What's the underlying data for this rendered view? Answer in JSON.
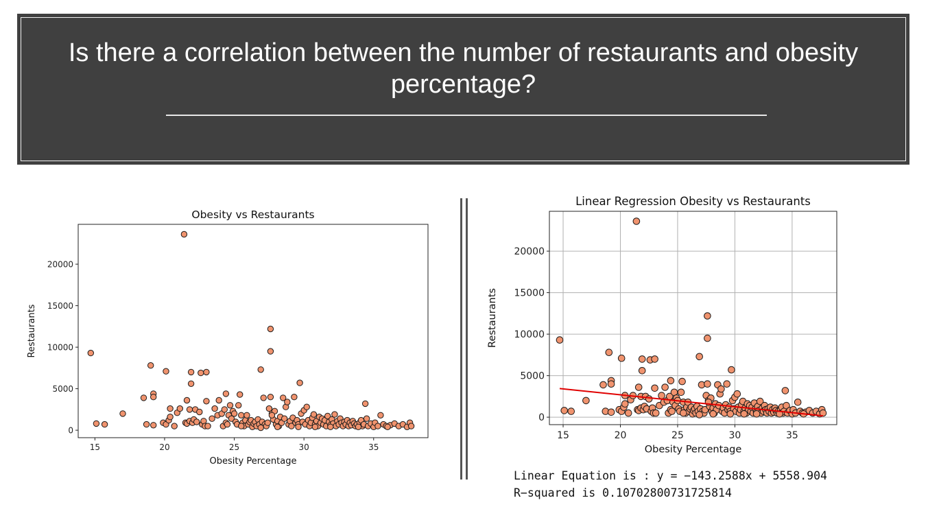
{
  "banner": {
    "title": "Is there a correlation between the number of restaurants and obesity percentage?"
  },
  "regression": {
    "equation": "Linear Equation is : y = −143.2588x + 5558.904",
    "r_squared": "R−squared is 0.10702800731725814",
    "slope": -143.2588,
    "intercept": 5558.904,
    "line_color": "#e00000"
  },
  "colors": {
    "marker_fill": "#f0936e",
    "marker_edge": "#1a1a1a"
  },
  "chart_data": [
    {
      "type": "scatter",
      "title": "Obesity vs Restaurants",
      "xlabel": "Obesity Percentage",
      "ylabel": "Restaurants",
      "xlim": [
        13.8,
        38.9
      ],
      "ylim": [
        -900,
        24800
      ],
      "xticks": [
        15,
        20,
        25,
        30,
        35
      ],
      "yticks": [
        0,
        5000,
        10000,
        15000,
        20000
      ],
      "grid": false
    },
    {
      "type": "scatter",
      "title": "Linear Regression Obesity vs Restaurants",
      "xlabel": "Obesity Percentage",
      "ylabel": "Restaurants",
      "xlim": [
        13.8,
        38.9
      ],
      "ylim": [
        -900,
        24800
      ],
      "xticks": [
        15,
        20,
        25,
        30,
        35
      ],
      "yticks": [
        0,
        5000,
        10000,
        15000,
        20000
      ],
      "grid": true,
      "regression_line": true
    }
  ],
  "points": [
    [
      14.7,
      9300
    ],
    [
      15.1,
      800
    ],
    [
      15.7,
      700
    ],
    [
      17.0,
      2000
    ],
    [
      18.5,
      3900
    ],
    [
      18.7,
      700
    ],
    [
      19.0,
      7800
    ],
    [
      19.2,
      4400
    ],
    [
      19.2,
      4000
    ],
    [
      19.2,
      600
    ],
    [
      19.9,
      900
    ],
    [
      20.1,
      7100
    ],
    [
      20.1,
      700
    ],
    [
      20.3,
      1200
    ],
    [
      20.4,
      1600
    ],
    [
      20.4,
      2600
    ],
    [
      20.7,
      500
    ],
    [
      20.9,
      2100
    ],
    [
      21.1,
      2600
    ],
    [
      21.4,
      23600
    ],
    [
      21.5,
      900
    ],
    [
      21.6,
      3600
    ],
    [
      21.6,
      800
    ],
    [
      21.8,
      1100
    ],
    [
      21.8,
      2500
    ],
    [
      21.9,
      7000
    ],
    [
      21.9,
      5600
    ],
    [
      22.0,
      900
    ],
    [
      22.1,
      1300
    ],
    [
      22.2,
      2500
    ],
    [
      22.3,
      1000
    ],
    [
      22.5,
      2200
    ],
    [
      22.6,
      6900
    ],
    [
      22.7,
      700
    ],
    [
      22.8,
      1100
    ],
    [
      22.9,
      500
    ],
    [
      23.0,
      7000
    ],
    [
      23.0,
      3500
    ],
    [
      23.1,
      500
    ],
    [
      23.4,
      1400
    ],
    [
      23.6,
      2600
    ],
    [
      23.8,
      1800
    ],
    [
      23.9,
      3600
    ],
    [
      24.1,
      2000
    ],
    [
      24.2,
      500
    ],
    [
      24.3,
      2500
    ],
    [
      24.4,
      4400
    ],
    [
      24.4,
      900
    ],
    [
      24.5,
      700
    ],
    [
      24.6,
      1800
    ],
    [
      24.7,
      3000
    ],
    [
      24.8,
      1400
    ],
    [
      24.9,
      2300
    ],
    [
      25.0,
      2000
    ],
    [
      25.1,
      1000
    ],
    [
      25.2,
      700
    ],
    [
      25.3,
      3000
    ],
    [
      25.4,
      4300
    ],
    [
      25.5,
      1800
    ],
    [
      25.6,
      900
    ],
    [
      25.7,
      500
    ],
    [
      25.8,
      1200
    ],
    [
      25.9,
      1800
    ],
    [
      26.0,
      700
    ],
    [
      26.1,
      1000
    ],
    [
      26.2,
      1200
    ],
    [
      26.3,
      400
    ],
    [
      26.4,
      800
    ],
    [
      26.5,
      1000
    ],
    [
      26.6,
      500
    ],
    [
      26.7,
      1300
    ],
    [
      26.8,
      700
    ],
    [
      26.9,
      7300
    ],
    [
      27.0,
      1000
    ],
    [
      27.1,
      3900
    ],
    [
      27.2,
      700
    ],
    [
      27.3,
      500
    ],
    [
      27.4,
      900
    ],
    [
      27.5,
      2600
    ],
    [
      27.6,
      4000
    ],
    [
      27.6,
      12200
    ],
    [
      27.6,
      9500
    ],
    [
      27.7,
      2000
    ],
    [
      27.8,
      1300
    ],
    [
      27.9,
      2300
    ],
    [
      28.0,
      700
    ],
    [
      28.1,
      1100
    ],
    [
      28.2,
      500
    ],
    [
      28.3,
      1600
    ],
    [
      28.4,
      900
    ],
    [
      28.5,
      3900
    ],
    [
      28.6,
      1400
    ],
    [
      28.7,
      2800
    ],
    [
      28.8,
      3400
    ],
    [
      28.9,
      700
    ],
    [
      29.0,
      1100
    ],
    [
      29.1,
      500
    ],
    [
      29.2,
      1500
    ],
    [
      29.3,
      4000
    ],
    [
      29.4,
      900
    ],
    [
      29.5,
      1200
    ],
    [
      29.6,
      700
    ],
    [
      29.7,
      5700
    ],
    [
      29.8,
      2000
    ],
    [
      29.9,
      1000
    ],
    [
      30.0,
      2400
    ],
    [
      30.1,
      700
    ],
    [
      30.2,
      2800
    ],
    [
      30.3,
      1200
    ],
    [
      30.4,
      500
    ],
    [
      30.5,
      900
    ],
    [
      30.6,
      1500
    ],
    [
      30.7,
      1900
    ],
    [
      30.8,
      700
    ],
    [
      30.9,
      1100
    ],
    [
      31.0,
      500
    ],
    [
      31.1,
      1600
    ],
    [
      31.2,
      900
    ],
    [
      31.3,
      1400
    ],
    [
      31.4,
      700
    ],
    [
      31.5,
      1200
    ],
    [
      31.6,
      500
    ],
    [
      31.7,
      1700
    ],
    [
      31.8,
      1000
    ],
    [
      31.9,
      600
    ],
    [
      32.0,
      1300
    ],
    [
      32.1,
      800
    ],
    [
      32.2,
      1900
    ],
    [
      32.3,
      500
    ],
    [
      32.4,
      1100
    ],
    [
      32.5,
      700
    ],
    [
      32.6,
      1400
    ],
    [
      32.7,
      900
    ],
    [
      32.8,
      500
    ],
    [
      32.9,
      1000
    ],
    [
      33.0,
      700
    ],
    [
      33.1,
      1200
    ],
    [
      33.2,
      500
    ],
    [
      33.3,
      900
    ],
    [
      33.4,
      600
    ],
    [
      33.5,
      1100
    ],
    [
      33.6,
      800
    ],
    [
      33.7,
      500
    ],
    [
      33.8,
      700
    ],
    [
      34.0,
      900
    ],
    [
      34.1,
      1200
    ],
    [
      34.2,
      500
    ],
    [
      34.3,
      700
    ],
    [
      34.4,
      3200
    ],
    [
      34.5,
      1400
    ],
    [
      34.6,
      500
    ],
    [
      34.8,
      800
    ],
    [
      35.0,
      400
    ],
    [
      35.1,
      900
    ],
    [
      35.3,
      500
    ],
    [
      35.5,
      1800
    ],
    [
      35.7,
      700
    ],
    [
      35.9,
      500
    ],
    [
      36.2,
      600
    ],
    [
      36.5,
      800
    ],
    [
      36.8,
      500
    ],
    [
      37.1,
      700
    ],
    [
      37.4,
      400
    ],
    [
      37.6,
      900
    ],
    [
      37.7,
      500
    ],
    [
      28.1,
      400
    ],
    [
      29.6,
      400
    ],
    [
      30.8,
      400
    ],
    [
      26.9,
      300
    ],
    [
      25.5,
      500
    ],
    [
      31.9,
      400
    ],
    [
      33.9,
      400
    ],
    [
      36.0,
      400
    ],
    [
      27.7,
      1800
    ]
  ]
}
